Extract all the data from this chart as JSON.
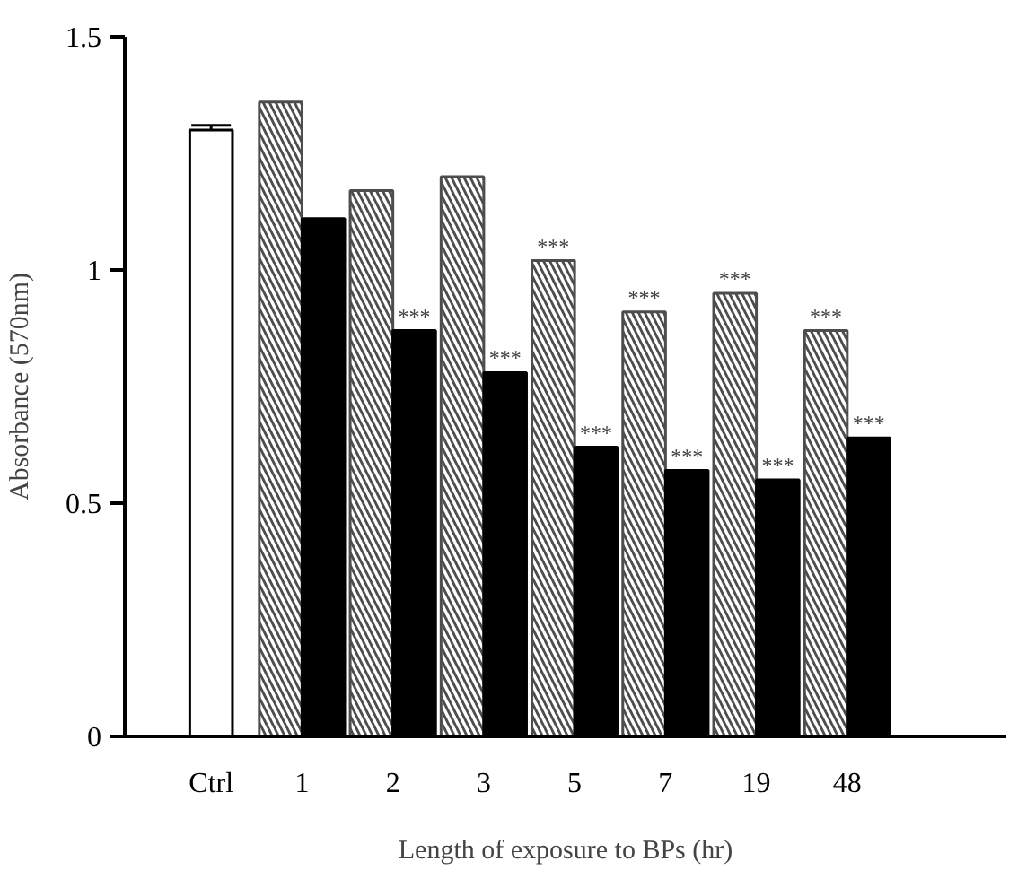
{
  "chart_data": {
    "type": "bar",
    "xlabel": "Length of exposure to BPs (hr)",
    "ylabel": "Absorbance (570nm)",
    "categories": [
      "Ctrl",
      "1",
      "2",
      "3",
      "5",
      "7",
      "19",
      "48"
    ],
    "series": [
      {
        "color": "#ffffff",
        "values": [
          1.3,
          null,
          null,
          null,
          null,
          null,
          null,
          null
        ],
        "errors": [
          0.01,
          null,
          null,
          null,
          null,
          null,
          null,
          null
        ]
      },
      {
        "color": "#4d4d4d",
        "values": [
          null,
          1.36,
          1.17,
          1.2,
          1.02,
          0.91,
          0.95,
          0.87
        ]
      },
      {
        "color": "#000000",
        "values": [
          null,
          1.11,
          0.87,
          0.78,
          0.62,
          0.57,
          0.55,
          0.64
        ]
      }
    ],
    "ylim": [
      0,
      1.5
    ],
    "yticks": [
      0,
      0.5,
      {
        "value": 1,
        "label": "1"
      },
      1.5
    ],
    "grid": false,
    "annotations": [
      {
        "text": "***",
        "x": "2",
        "y": 0.87
      },
      {
        "text": "***",
        "x": "3",
        "y": 0.78
      },
      {
        "text": "***",
        "x": "5",
        "y": 1.02
      },
      {
        "text": "***",
        "x": "5",
        "y": 0.62
      },
      {
        "text": "***",
        "x": "7",
        "y": 0.91
      },
      {
        "text": "***",
        "x": "7",
        "y": 0.57
      },
      {
        "text": "***",
        "x": "19",
        "y": 0.95
      },
      {
        "text": "***",
        "x": "19",
        "y": 0.55
      },
      {
        "text": "***",
        "x": "48",
        "y": 0.87
      },
      {
        "text": "***",
        "x": "48",
        "y": 0.64
      }
    ]
  }
}
